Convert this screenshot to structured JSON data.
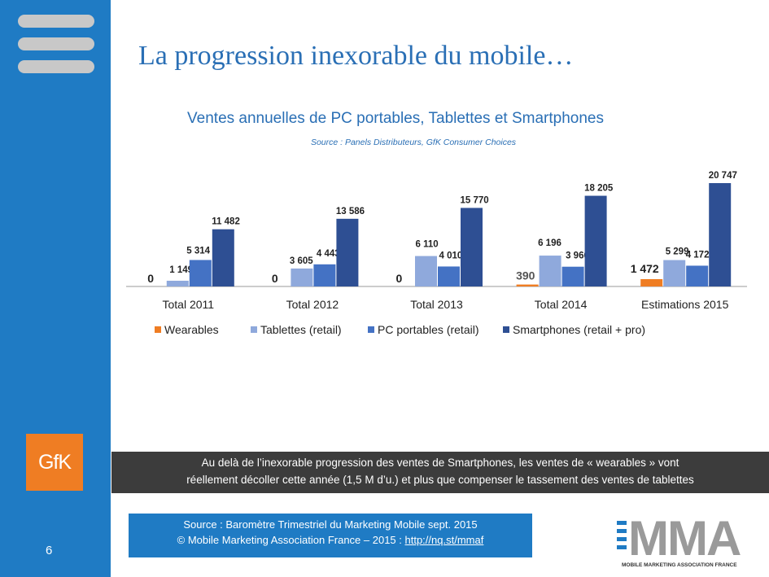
{
  "slide": {
    "title": "La progression inexorable du mobile…",
    "page_number": "6",
    "gfk_logo_text": "GfK"
  },
  "banner": {
    "line1": "Au delà de l’inexorable progression des ventes de Smartphones, les ventes de « wearables » vont",
    "line2": "réellement décoller cette année (1,5 M d’u.) et plus que compenser le tassement des ventes de tablettes"
  },
  "footer": {
    "source_line1": "Source : Baromètre Trimestriel du Marketing Mobile sept. 2015",
    "source_line2_prefix": "© Mobile Marketing Association France – 2015 : ",
    "source_link": "http://nq.st/mmaf",
    "mma_logo_text": "MMA",
    "mma_logo_subtext": "MOBILE MARKETING ASSOCIATION FRANCE"
  },
  "chart_data": {
    "type": "bar",
    "title": "Ventes annuelles de PC portables, Tablettes et Smartphones",
    "subtitle": "Source : Panels Distributeurs, GfK Consumer Choices",
    "categories": [
      "Total 2011",
      "Total 2012",
      "Total 2013",
      "Total 2014",
      "Estimations 2015"
    ],
    "series": [
      {
        "name": "Wearables",
        "color": "#ef7d23",
        "values": [
          0,
          0,
          0,
          390,
          1472
        ],
        "labels": [
          "0",
          "0",
          "0",
          "390",
          "1 472"
        ]
      },
      {
        "name": "Tablettes (retail)",
        "color": "#8fa9dc",
        "values": [
          1149,
          3605,
          6110,
          6196,
          5299
        ],
        "labels": [
          "1 149",
          "3 605",
          "6 110",
          "6 196",
          "5 299"
        ]
      },
      {
        "name": "PC portables (retail)",
        "color": "#4472c4",
        "values": [
          5314,
          4443,
          4010,
          3966,
          4172
        ],
        "labels": [
          "5 314",
          "4 443",
          "4 010",
          "3 966",
          "4 172"
        ]
      },
      {
        "name": "Smartphones (retail + pro)",
        "color": "#2e4f93",
        "values": [
          11482,
          13586,
          15770,
          18205,
          20747
        ],
        "labels": [
          "11 482",
          "13 586",
          "15 770",
          "18 205",
          "20 747"
        ]
      }
    ],
    "ylim": [
      0,
      20747
    ],
    "grid": false,
    "legend_position": "bottom"
  }
}
